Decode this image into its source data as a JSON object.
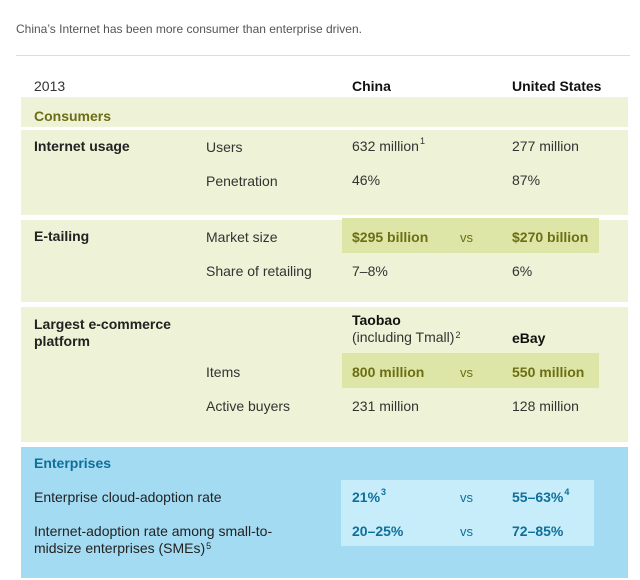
{
  "caption": "China’s Internet has been more consumer than enterprise driven.",
  "header": {
    "year": "2013",
    "china": "China",
    "us": "United States"
  },
  "consumers": {
    "title": "Consumers",
    "internet_usage": {
      "label": "Internet usage",
      "users": {
        "metric": "Users",
        "china": "632 million",
        "china_note": "1",
        "us": "277 million"
      },
      "penetration": {
        "metric": "Penetration",
        "china": "46%",
        "us": "87%"
      }
    },
    "etailing": {
      "label": "E-tailing",
      "market_size": {
        "metric": "Market size",
        "china": "$295 billion",
        "vs": "vs",
        "us": "$270 billion"
      },
      "share": {
        "metric": "Share of retailing",
        "china": "7–8%",
        "us": "6%"
      }
    },
    "largest_platform": {
      "label_line1": "Largest e-commerce",
      "label_line2": "platform",
      "china_name": "Taobao",
      "china_sub": "(including Tmall)",
      "china_note": "2",
      "us_name": "eBay",
      "items": {
        "metric": "Items",
        "china": "800 million",
        "vs": "vs",
        "us": "550 million"
      },
      "buyers": {
        "metric": "Active buyers",
        "china": "231 million",
        "us": "128 million"
      }
    }
  },
  "enterprises": {
    "title": "Enterprises",
    "cloud": {
      "metric": "Enterprise cloud-adoption rate",
      "china": "21%",
      "china_note": "3",
      "vs": "vs",
      "us": "55–63%",
      "us_note": "4"
    },
    "sme": {
      "metric_line1": "Internet-adoption rate among small-to-",
      "metric_line2": "midsize enterprises (SMEs)",
      "metric_note": "5",
      "china": "20–25%",
      "vs": "vs",
      "us": "72–85%"
    }
  },
  "colors": {
    "consumer_panel": "#eef2d6",
    "consumer_highlight": "#dde6a7",
    "consumer_accent": "#6d6e14",
    "enterprise_panel": "#a3dbf2",
    "enterprise_highlight": "#c8edfa",
    "enterprise_accent": "#0f6f9a"
  }
}
